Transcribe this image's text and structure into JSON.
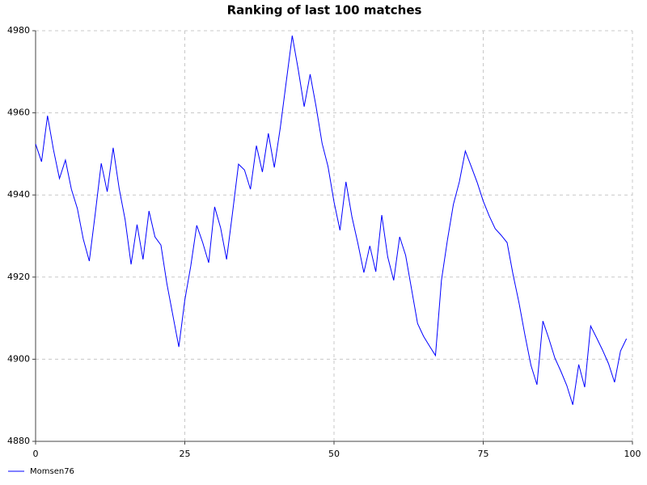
{
  "chart_data": {
    "type": "line",
    "title": "Ranking of last 100 matches",
    "x": [
      0,
      1,
      2,
      3,
      4,
      5,
      6,
      7,
      8,
      9,
      10,
      11,
      12,
      13,
      14,
      15,
      16,
      17,
      18,
      19,
      20,
      21,
      22,
      23,
      24,
      25,
      26,
      27,
      28,
      29,
      30,
      31,
      32,
      33,
      34,
      35,
      36,
      37,
      38,
      39,
      40,
      41,
      42,
      43,
      44,
      45,
      46,
      47,
      48,
      49,
      50,
      51,
      52,
      53,
      54,
      55,
      56,
      57,
      58,
      59,
      60,
      61,
      62,
      63,
      64,
      65,
      66,
      67,
      68,
      69,
      70,
      71,
      72,
      73,
      74,
      75,
      76,
      77,
      78,
      79,
      80,
      81,
      82,
      83,
      84,
      85,
      86,
      87,
      88,
      89,
      90,
      91,
      92,
      93,
      94,
      95,
      96,
      97,
      98,
      99
    ],
    "series": [
      {
        "name": "Momsen76",
        "color": "#0000ff",
        "values": [
          4952.4,
          4948.1,
          4959.3,
          4951,
          4944,
          4948.5,
          4941.4,
          4936.7,
          4929.2,
          4923.9,
          4935.5,
          4947.7,
          4940.8,
          4951.5,
          4941.6,
          4934,
          4923.1,
          4932.8,
          4924.3,
          4936.1,
          4929.8,
          4927.8,
          4918.4,
          4910.7,
          4903,
          4914.4,
          4922.7,
          4932.6,
          4928.4,
          4923.5,
          4937.1,
          4932,
          4924.3,
          4935.7,
          4947.5,
          4946.1,
          4941.4,
          4952,
          4945.6,
          4955,
          4946.7,
          4956.4,
          4967.6,
          4978.8,
          4970.6,
          4961.5,
          4969.4,
          4961.5,
          4952.6,
          4946.9,
          4938.3,
          4931.4,
          4943.2,
          4934.7,
          4928.2,
          4921.1,
          4927.6,
          4921.3,
          4935.1,
          4924.9,
          4919.2,
          4929.8,
          4925.3,
          4917,
          4908.7,
          4905.6,
          4903.2,
          4900.9,
          4919.2,
          4929,
          4937.7,
          4943.2,
          4950.7,
          4946.9,
          4943,
          4938.5,
          4934.9,
          4931.8,
          4930.2,
          4928.4,
          4920.6,
          4913.7,
          4905.8,
          4898.5,
          4893.8,
          4909.3,
          4905,
          4900.3,
          4897.1,
          4893.6,
          4888.9,
          4898.7,
          4893.2,
          4908.1,
          4905.2,
          4902.2,
          4898.9,
          4894.4,
          4902,
          4905
        ]
      }
    ],
    "xlim": [
      0,
      100
    ],
    "xticks": [
      0,
      25,
      50,
      75,
      100
    ],
    "ylim": [
      4880,
      4980
    ],
    "yticks": [
      4880,
      4900,
      4920,
      4940,
      4960,
      4980
    ],
    "grid": true,
    "legend": "bottom-left"
  }
}
